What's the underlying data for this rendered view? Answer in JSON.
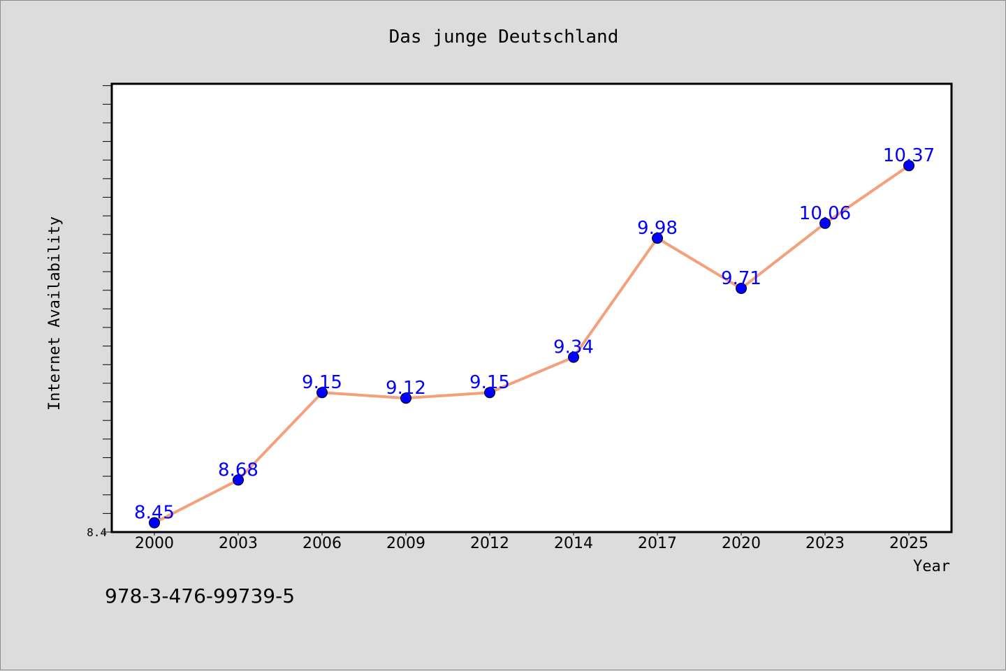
{
  "chart_data": {
    "type": "line",
    "title": "Das junge Deutschland",
    "xlabel": "Year",
    "ylabel": "Internet Availability",
    "categories": [
      "2000",
      "2003",
      "2006",
      "2009",
      "2012",
      "2014",
      "2017",
      "2020",
      "2023",
      "2025"
    ],
    "series": [
      {
        "name": "",
        "values": [
          8.45,
          8.68,
          9.15,
          9.12,
          9.15,
          9.34,
          9.98,
          9.71,
          10.06,
          10.37
        ],
        "data_labels": [
          "8.45",
          "8.68",
          "9.15",
          "9.12",
          "9.15",
          "9.34",
          "9.98",
          "9.71",
          "10.06",
          "10.37"
        ]
      }
    ],
    "ylim": [
      8.4,
      10.81
    ],
    "y_tick_labels": [
      "8.4"
    ],
    "grid": false,
    "legend": "none",
    "colors": {
      "line": "#f4a07c",
      "marker": "#0000ff",
      "data_label": "#0000ff",
      "plot_background": "#ffffff",
      "figure_background": "#dcdcdc"
    }
  },
  "footnote": "978-3-476-99739-5"
}
